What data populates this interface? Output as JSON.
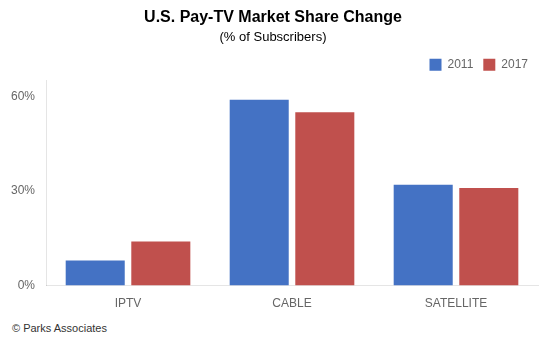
{
  "chart_data": {
    "type": "bar",
    "title": "U.S. Pay-TV Market Share Change",
    "subtitle": "(% of Subscribers)",
    "annotations": [
      "© Parks Associates"
    ],
    "categories": [
      "IPTV",
      "CABLE",
      "SATELLITE"
    ],
    "series": [
      {
        "name": "2011",
        "color": "#4472C4",
        "values": [
          8,
          59,
          32
        ]
      },
      {
        "name": "2017",
        "color": "#C0504D",
        "values": [
          14,
          55,
          31
        ]
      }
    ],
    "ylim": [
      0,
      65
    ],
    "yticks": [
      {
        "value": 0,
        "label": "0%"
      },
      {
        "value": 30,
        "label": "30%"
      },
      {
        "value": 60,
        "label": "60%"
      }
    ],
    "grid": false,
    "legend": "upper right"
  }
}
